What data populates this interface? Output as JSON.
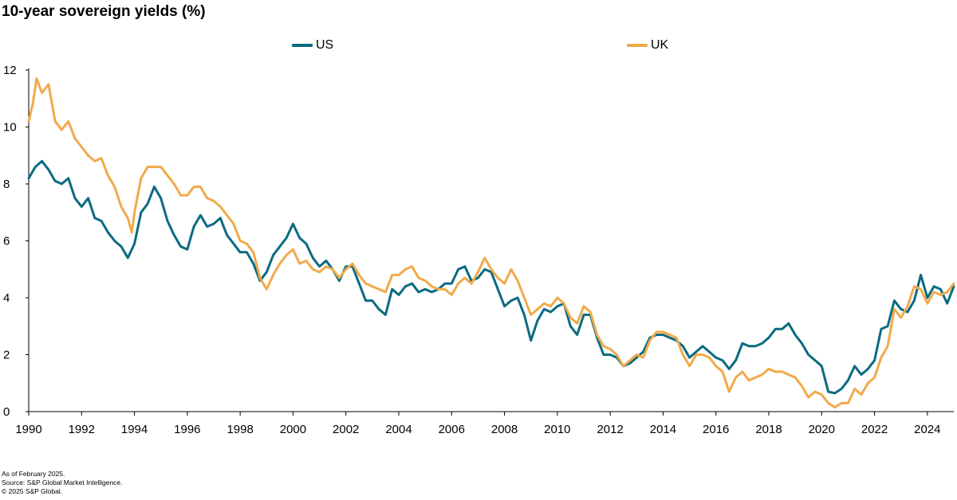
{
  "title": "10-year sovereign yields (%)",
  "legend": [
    {
      "name": "US",
      "color": "#0b6b80"
    },
    {
      "name": "UK",
      "color": "#f0aa4b"
    }
  ],
  "notes": {
    "as_of": "As of February 2025.",
    "source": "Source: S&P Global Market Intelligence.",
    "copyright": "© 2025 S&P Global."
  },
  "chart_data": {
    "type": "line",
    "title": "10-year sovereign yields (%)",
    "xlabel": "",
    "ylabel": "",
    "xlim": [
      1990,
      2025
    ],
    "ylim": [
      0,
      12
    ],
    "x_ticks": [
      "1990",
      "1992",
      "1994",
      "1996",
      "1998",
      "2000",
      "2002",
      "2004",
      "2006",
      "2008",
      "2010",
      "2012",
      "2014",
      "2016",
      "2018",
      "2020",
      "2022",
      "2024"
    ],
    "y_ticks": [
      "0",
      "2",
      "4",
      "6",
      "8",
      "10",
      "12"
    ],
    "grid": false,
    "legend_position": "top",
    "series": [
      {
        "name": "US",
        "color": "#0b6b80",
        "points": [
          [
            1990.0,
            8.2
          ],
          [
            1990.25,
            8.6
          ],
          [
            1990.5,
            8.8
          ],
          [
            1990.75,
            8.5
          ],
          [
            1991.0,
            8.1
          ],
          [
            1991.25,
            8.0
          ],
          [
            1991.5,
            8.2
          ],
          [
            1991.75,
            7.5
          ],
          [
            1992.0,
            7.2
          ],
          [
            1992.25,
            7.5
          ],
          [
            1992.5,
            6.8
          ],
          [
            1992.75,
            6.7
          ],
          [
            1993.0,
            6.3
          ],
          [
            1993.25,
            6.0
          ],
          [
            1993.5,
            5.8
          ],
          [
            1993.75,
            5.4
          ],
          [
            1994.0,
            5.9
          ],
          [
            1994.25,
            7.0
          ],
          [
            1994.5,
            7.3
          ],
          [
            1994.75,
            7.9
          ],
          [
            1995.0,
            7.5
          ],
          [
            1995.25,
            6.7
          ],
          [
            1995.5,
            6.2
          ],
          [
            1995.75,
            5.8
          ],
          [
            1996.0,
            5.7
          ],
          [
            1996.25,
            6.5
          ],
          [
            1996.5,
            6.9
          ],
          [
            1996.75,
            6.5
          ],
          [
            1997.0,
            6.6
          ],
          [
            1997.25,
            6.8
          ],
          [
            1997.5,
            6.2
          ],
          [
            1997.75,
            5.9
          ],
          [
            1998.0,
            5.6
          ],
          [
            1998.25,
            5.6
          ],
          [
            1998.5,
            5.2
          ],
          [
            1998.75,
            4.6
          ],
          [
            1999.0,
            4.9
          ],
          [
            1999.25,
            5.5
          ],
          [
            1999.5,
            5.8
          ],
          [
            1999.75,
            6.1
          ],
          [
            2000.0,
            6.6
          ],
          [
            2000.25,
            6.1
          ],
          [
            2000.5,
            5.9
          ],
          [
            2000.75,
            5.4
          ],
          [
            2001.0,
            5.1
          ],
          [
            2001.25,
            5.3
          ],
          [
            2001.5,
            5.0
          ],
          [
            2001.75,
            4.6
          ],
          [
            2002.0,
            5.1
          ],
          [
            2002.25,
            5.1
          ],
          [
            2002.5,
            4.5
          ],
          [
            2002.75,
            3.9
          ],
          [
            2003.0,
            3.9
          ],
          [
            2003.25,
            3.6
          ],
          [
            2003.5,
            3.4
          ],
          [
            2003.75,
            4.3
          ],
          [
            2004.0,
            4.1
          ],
          [
            2004.25,
            4.4
          ],
          [
            2004.5,
            4.5
          ],
          [
            2004.75,
            4.2
          ],
          [
            2005.0,
            4.3
          ],
          [
            2005.25,
            4.2
          ],
          [
            2005.5,
            4.3
          ],
          [
            2005.75,
            4.5
          ],
          [
            2006.0,
            4.5
          ],
          [
            2006.25,
            5.0
          ],
          [
            2006.5,
            5.1
          ],
          [
            2006.75,
            4.6
          ],
          [
            2007.0,
            4.7
          ],
          [
            2007.25,
            5.0
          ],
          [
            2007.5,
            4.9
          ],
          [
            2007.75,
            4.3
          ],
          [
            2008.0,
            3.7
          ],
          [
            2008.25,
            3.9
          ],
          [
            2008.5,
            4.0
          ],
          [
            2008.75,
            3.4
          ],
          [
            2009.0,
            2.5
          ],
          [
            2009.25,
            3.2
          ],
          [
            2009.5,
            3.6
          ],
          [
            2009.75,
            3.5
          ],
          [
            2010.0,
            3.7
          ],
          [
            2010.25,
            3.8
          ],
          [
            2010.5,
            3.0
          ],
          [
            2010.75,
            2.7
          ],
          [
            2011.0,
            3.4
          ],
          [
            2011.25,
            3.4
          ],
          [
            2011.5,
            2.6
          ],
          [
            2011.75,
            2.0
          ],
          [
            2012.0,
            2.0
          ],
          [
            2012.25,
            1.9
          ],
          [
            2012.5,
            1.6
          ],
          [
            2012.75,
            1.7
          ],
          [
            2013.0,
            1.9
          ],
          [
            2013.25,
            2.1
          ],
          [
            2013.5,
            2.6
          ],
          [
            2013.75,
            2.7
          ],
          [
            2014.0,
            2.7
          ],
          [
            2014.25,
            2.6
          ],
          [
            2014.5,
            2.5
          ],
          [
            2014.75,
            2.3
          ],
          [
            2015.0,
            1.9
          ],
          [
            2015.25,
            2.1
          ],
          [
            2015.5,
            2.3
          ],
          [
            2015.75,
            2.1
          ],
          [
            2016.0,
            1.9
          ],
          [
            2016.25,
            1.8
          ],
          [
            2016.5,
            1.5
          ],
          [
            2016.75,
            1.8
          ],
          [
            2017.0,
            2.4
          ],
          [
            2017.25,
            2.3
          ],
          [
            2017.5,
            2.3
          ],
          [
            2017.75,
            2.4
          ],
          [
            2018.0,
            2.6
          ],
          [
            2018.25,
            2.9
          ],
          [
            2018.5,
            2.9
          ],
          [
            2018.75,
            3.1
          ],
          [
            2019.0,
            2.7
          ],
          [
            2019.25,
            2.4
          ],
          [
            2019.5,
            2.0
          ],
          [
            2019.75,
            1.8
          ],
          [
            2020.0,
            1.6
          ],
          [
            2020.25,
            0.7
          ],
          [
            2020.5,
            0.65
          ],
          [
            2020.75,
            0.8
          ],
          [
            2021.0,
            1.1
          ],
          [
            2021.25,
            1.6
          ],
          [
            2021.5,
            1.3
          ],
          [
            2021.75,
            1.5
          ],
          [
            2022.0,
            1.8
          ],
          [
            2022.25,
            2.9
          ],
          [
            2022.5,
            3.0
          ],
          [
            2022.75,
            3.9
          ],
          [
            2023.0,
            3.6
          ],
          [
            2023.25,
            3.5
          ],
          [
            2023.5,
            3.9
          ],
          [
            2023.75,
            4.8
          ],
          [
            2024.0,
            4.0
          ],
          [
            2024.25,
            4.4
          ],
          [
            2024.5,
            4.3
          ],
          [
            2024.75,
            3.8
          ],
          [
            2025.0,
            4.4
          ]
        ]
      },
      {
        "name": "UK",
        "color": "#f0aa4b",
        "points": [
          [
            1990.0,
            10.2
          ],
          [
            1990.15,
            10.8
          ],
          [
            1990.3,
            11.7
          ],
          [
            1990.5,
            11.2
          ],
          [
            1990.75,
            11.5
          ],
          [
            1991.0,
            10.2
          ],
          [
            1991.25,
            9.9
          ],
          [
            1991.5,
            10.2
          ],
          [
            1991.75,
            9.6
          ],
          [
            1992.0,
            9.3
          ],
          [
            1992.25,
            9.0
          ],
          [
            1992.5,
            8.8
          ],
          [
            1992.75,
            8.9
          ],
          [
            1993.0,
            8.3
          ],
          [
            1993.25,
            7.9
          ],
          [
            1993.5,
            7.2
          ],
          [
            1993.75,
            6.8
          ],
          [
            1993.9,
            6.3
          ],
          [
            1994.0,
            7.0
          ],
          [
            1994.25,
            8.2
          ],
          [
            1994.5,
            8.6
          ],
          [
            1994.75,
            8.6
          ],
          [
            1995.0,
            8.6
          ],
          [
            1995.25,
            8.3
          ],
          [
            1995.5,
            8.0
          ],
          [
            1995.75,
            7.6
          ],
          [
            1996.0,
            7.6
          ],
          [
            1996.25,
            7.9
          ],
          [
            1996.5,
            7.9
          ],
          [
            1996.75,
            7.5
          ],
          [
            1997.0,
            7.4
          ],
          [
            1997.25,
            7.2
          ],
          [
            1997.5,
            6.9
          ],
          [
            1997.75,
            6.6
          ],
          [
            1998.0,
            6.0
          ],
          [
            1998.25,
            5.9
          ],
          [
            1998.5,
            5.6
          ],
          [
            1998.75,
            4.7
          ],
          [
            1999.0,
            4.3
          ],
          [
            1999.25,
            4.8
          ],
          [
            1999.5,
            5.2
          ],
          [
            1999.75,
            5.5
          ],
          [
            2000.0,
            5.7
          ],
          [
            2000.25,
            5.2
          ],
          [
            2000.5,
            5.3
          ],
          [
            2000.75,
            5.0
          ],
          [
            2001.0,
            4.9
          ],
          [
            2001.25,
            5.1
          ],
          [
            2001.5,
            5.0
          ],
          [
            2001.75,
            4.7
          ],
          [
            2002.0,
            5.0
          ],
          [
            2002.25,
            5.2
          ],
          [
            2002.5,
            4.8
          ],
          [
            2002.75,
            4.5
          ],
          [
            2003.0,
            4.4
          ],
          [
            2003.25,
            4.3
          ],
          [
            2003.5,
            4.2
          ],
          [
            2003.75,
            4.8
          ],
          [
            2004.0,
            4.8
          ],
          [
            2004.25,
            5.0
          ],
          [
            2004.5,
            5.1
          ],
          [
            2004.75,
            4.7
          ],
          [
            2005.0,
            4.6
          ],
          [
            2005.25,
            4.4
          ],
          [
            2005.5,
            4.3
          ],
          [
            2005.75,
            4.3
          ],
          [
            2006.0,
            4.1
          ],
          [
            2006.25,
            4.5
          ],
          [
            2006.5,
            4.7
          ],
          [
            2006.75,
            4.5
          ],
          [
            2007.0,
            4.9
          ],
          [
            2007.25,
            5.4
          ],
          [
            2007.5,
            5.0
          ],
          [
            2007.75,
            4.7
          ],
          [
            2008.0,
            4.5
          ],
          [
            2008.25,
            5.0
          ],
          [
            2008.5,
            4.6
          ],
          [
            2008.75,
            4.0
          ],
          [
            2009.0,
            3.4
          ],
          [
            2009.25,
            3.6
          ],
          [
            2009.5,
            3.8
          ],
          [
            2009.75,
            3.7
          ],
          [
            2010.0,
            4.0
          ],
          [
            2010.25,
            3.8
          ],
          [
            2010.5,
            3.3
          ],
          [
            2010.75,
            3.1
          ],
          [
            2011.0,
            3.7
          ],
          [
            2011.25,
            3.5
          ],
          [
            2011.5,
            2.7
          ],
          [
            2011.75,
            2.3
          ],
          [
            2012.0,
            2.2
          ],
          [
            2012.25,
            2.0
          ],
          [
            2012.5,
            1.6
          ],
          [
            2012.75,
            1.8
          ],
          [
            2013.0,
            2.0
          ],
          [
            2013.25,
            1.9
          ],
          [
            2013.5,
            2.5
          ],
          [
            2013.75,
            2.8
          ],
          [
            2014.0,
            2.8
          ],
          [
            2014.25,
            2.7
          ],
          [
            2014.5,
            2.6
          ],
          [
            2014.75,
            2.0
          ],
          [
            2015.0,
            1.6
          ],
          [
            2015.25,
            2.0
          ],
          [
            2015.5,
            2.0
          ],
          [
            2015.75,
            1.9
          ],
          [
            2016.0,
            1.6
          ],
          [
            2016.25,
            1.4
          ],
          [
            2016.5,
            0.7
          ],
          [
            2016.75,
            1.2
          ],
          [
            2017.0,
            1.4
          ],
          [
            2017.25,
            1.1
          ],
          [
            2017.5,
            1.2
          ],
          [
            2017.75,
            1.3
          ],
          [
            2018.0,
            1.5
          ],
          [
            2018.25,
            1.4
          ],
          [
            2018.5,
            1.4
          ],
          [
            2018.75,
            1.3
          ],
          [
            2019.0,
            1.2
          ],
          [
            2019.25,
            0.9
          ],
          [
            2019.5,
            0.5
          ],
          [
            2019.75,
            0.7
          ],
          [
            2020.0,
            0.6
          ],
          [
            2020.25,
            0.3
          ],
          [
            2020.5,
            0.15
          ],
          [
            2020.75,
            0.3
          ],
          [
            2021.0,
            0.3
          ],
          [
            2021.25,
            0.8
          ],
          [
            2021.5,
            0.6
          ],
          [
            2021.75,
            1.0
          ],
          [
            2022.0,
            1.2
          ],
          [
            2022.25,
            1.9
          ],
          [
            2022.5,
            2.3
          ],
          [
            2022.75,
            3.6
          ],
          [
            2023.0,
            3.3
          ],
          [
            2023.25,
            3.7
          ],
          [
            2023.5,
            4.4
          ],
          [
            2023.75,
            4.3
          ],
          [
            2024.0,
            3.8
          ],
          [
            2024.25,
            4.2
          ],
          [
            2024.5,
            4.1
          ],
          [
            2024.75,
            4.2
          ],
          [
            2025.0,
            4.5
          ]
        ]
      }
    ]
  }
}
